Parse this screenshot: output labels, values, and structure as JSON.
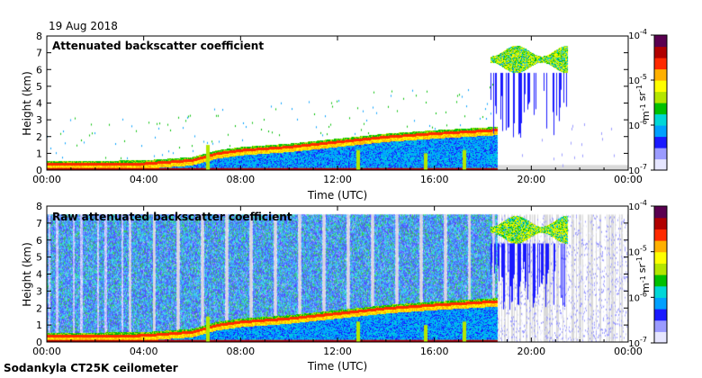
{
  "date": "19 Aug 2018",
  "footer": "Sodankyla CT25K ceilometer",
  "colors": {
    "background_missing": "#d9d9d9",
    "colormap": [
      "#e6e6ff",
      "#9b9bff",
      "#1a1aff",
      "#00a0ff",
      "#00d7d7",
      "#00c000",
      "#b4e600",
      "#ffff00",
      "#ffb000",
      "#ff2a00",
      "#b00000",
      "#5a0050"
    ]
  },
  "chart_data": [
    {
      "type": "heatmap",
      "title": "Attenuated backscatter coefficient",
      "xlabel": "Time (UTC)",
      "ylabel": "Height (km)",
      "x_ticks": [
        "00:00",
        "04:00",
        "08:00",
        "12:00",
        "16:00",
        "20:00",
        "00:00"
      ],
      "xlim_hours": [
        0,
        24
      ],
      "y_ticks": [
        "0",
        "1",
        "2",
        "3",
        "4",
        "5",
        "6",
        "7",
        "8"
      ],
      "ylim": [
        0,
        8
      ],
      "colorbar": {
        "label": "m-1 sr-1",
        "scale": "log",
        "range": [
          1e-07,
          0.0001
        ],
        "tick_labels": [
          "10-7",
          "10-6",
          "10-5",
          "10-4"
        ]
      },
      "features": {
        "boundary_layer_height_km": [
          [
            0,
            0.35
          ],
          [
            4,
            0.4
          ],
          [
            6,
            0.6
          ],
          [
            7,
            1.0
          ],
          [
            8,
            1.2
          ],
          [
            10,
            1.4
          ],
          [
            12,
            1.7
          ],
          [
            14,
            2.0
          ],
          [
            16,
            2.2
          ],
          [
            18.5,
            2.4
          ]
        ],
        "upper_cloud": {
          "time_hours": [
            18.3,
            21.5
          ],
          "height_km": [
            5.8,
            7.4
          ]
        },
        "missing_data_after_hours": 18.6
      }
    },
    {
      "type": "heatmap",
      "title": "Raw attenuated backscatter coefficient",
      "xlabel": "Time (UTC)",
      "ylabel": "Height (km)",
      "x_ticks": [
        "00:00",
        "04:00",
        "08:00",
        "12:00",
        "16:00",
        "20:00",
        "00:00"
      ],
      "xlim_hours": [
        0,
        24
      ],
      "y_ticks": [
        "0",
        "1",
        "2",
        "3",
        "4",
        "5",
        "6",
        "7",
        "8"
      ],
      "ylim": [
        0,
        8
      ],
      "colorbar": {
        "label": "m-1 sr-1",
        "scale": "log",
        "range": [
          1e-07,
          0.0001
        ],
        "tick_labels": [
          "10-7",
          "10-6",
          "10-5",
          "10-4"
        ]
      },
      "features": {
        "boundary_layer_height_km": [
          [
            0,
            0.35
          ],
          [
            4,
            0.4
          ],
          [
            6,
            0.6
          ],
          [
            7,
            1.0
          ],
          [
            8,
            1.2
          ],
          [
            10,
            1.4
          ],
          [
            12,
            1.7
          ],
          [
            14,
            2.0
          ],
          [
            16,
            2.2
          ],
          [
            18.5,
            2.4
          ]
        ],
        "upper_cloud": {
          "time_hours": [
            18.3,
            21.5
          ],
          "height_km": [
            5.8,
            7.4
          ]
        },
        "noisy_background_until_hours": 18.6
      }
    }
  ]
}
